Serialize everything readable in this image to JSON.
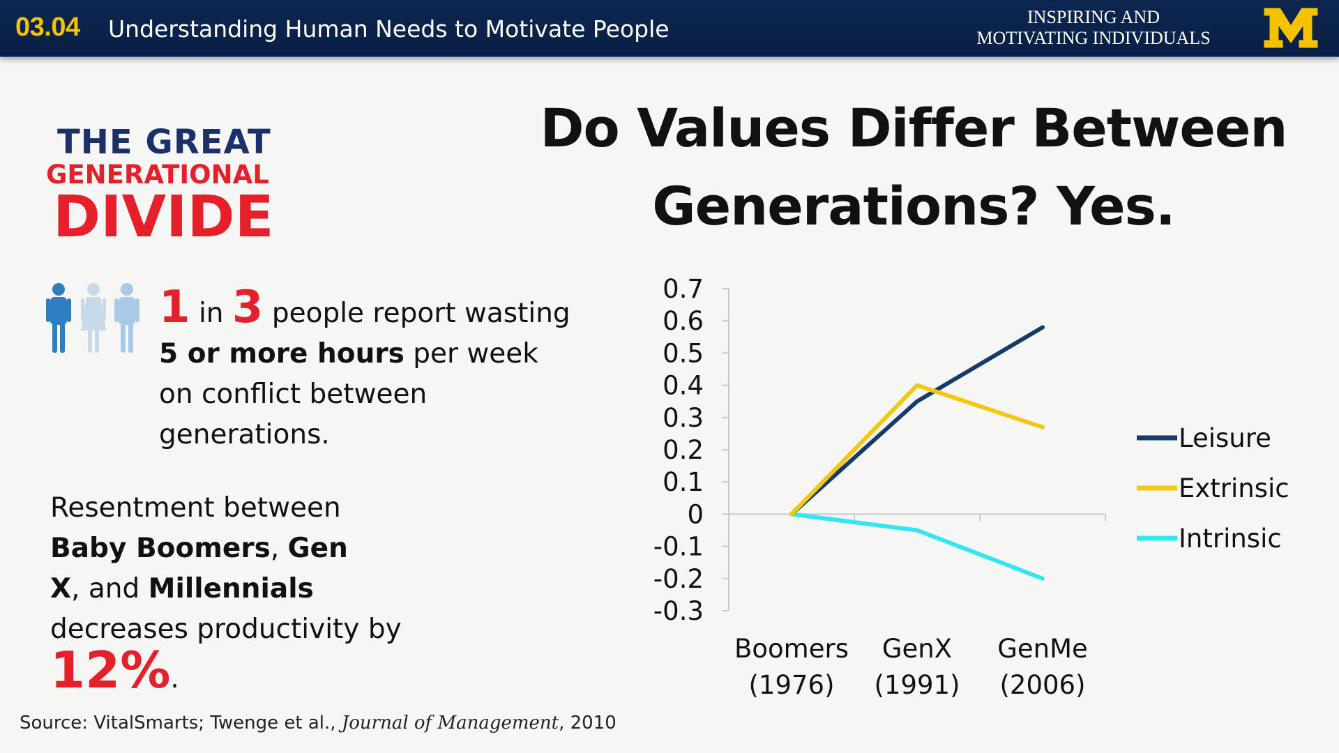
{
  "header": {
    "lecture_number": "03.04",
    "lecture_title": "Understanding Human Needs to Motivate People",
    "course_title_line1": "INSPIRING AND",
    "course_title_line2": "MOTIVATING INDIVIDUALS",
    "logo_letter": "M",
    "colors": {
      "bar": "#0a1f44",
      "accent": "#f3c300"
    }
  },
  "left": {
    "infographic": {
      "line1": "THE GREAT",
      "line2": "GENERATIONAL",
      "line3": "DIVIDE",
      "colors": {
        "navy": "#1b2f6b",
        "red": "#e5202a"
      }
    },
    "people_icon": "people-icon",
    "stat1": {
      "num1": "1",
      "word_in": "in",
      "num2": "3",
      "text_a": "people report wasting",
      "bold": "5 or more hours",
      "text_b": "per week",
      "text_c": "on conflict between",
      "text_d": "generations."
    },
    "stat2": {
      "text_a": "Resentment between",
      "bold1": "Baby Boomers",
      "comma1": ",",
      "bold2": "Gen",
      "bold3": "X",
      "text_b": ", and",
      "bold4": "Millennials",
      "text_c": "decreases productivity by",
      "pct": "12%",
      "period": "."
    },
    "source": {
      "prefix": "Source: VitalSmarts; Twenge et al.,",
      "journal": "Journal of Management",
      "suffix": ", 2010"
    }
  },
  "chart_title": {
    "line1": "Do Values Differ Between",
    "line2": "Generations? Yes."
  },
  "chart_data": {
    "type": "line",
    "title": "Do Values Differ Between Generations? Yes.",
    "categories": [
      "Boomers (1976)",
      "GenX (1991)",
      "GenMe (2006)"
    ],
    "category_lines": [
      [
        "Boomers",
        "(1976)"
      ],
      [
        "GenX",
        "(1991)"
      ],
      [
        "GenMe",
        "(2006)"
      ]
    ],
    "series": [
      {
        "name": "Leisure",
        "values": [
          0,
          0.35,
          0.58
        ],
        "color": "#163b6b"
      },
      {
        "name": "Extrinsic",
        "values": [
          0,
          0.4,
          0.27
        ],
        "color": "#f2c811"
      },
      {
        "name": "Intrinsic",
        "values": [
          0,
          -0.05,
          -0.2
        ],
        "color": "#33e6f2"
      }
    ],
    "yticks": [
      "0.7",
      "0.6",
      "0.5",
      "0.4",
      "0.3",
      "0.2",
      "0.1",
      "0",
      "-0.1",
      "-0.2",
      "-0.3"
    ],
    "ylim": [
      -0.3,
      0.7
    ],
    "xlabel": "",
    "ylabel": "",
    "grid": false,
    "legend_position": "right"
  }
}
